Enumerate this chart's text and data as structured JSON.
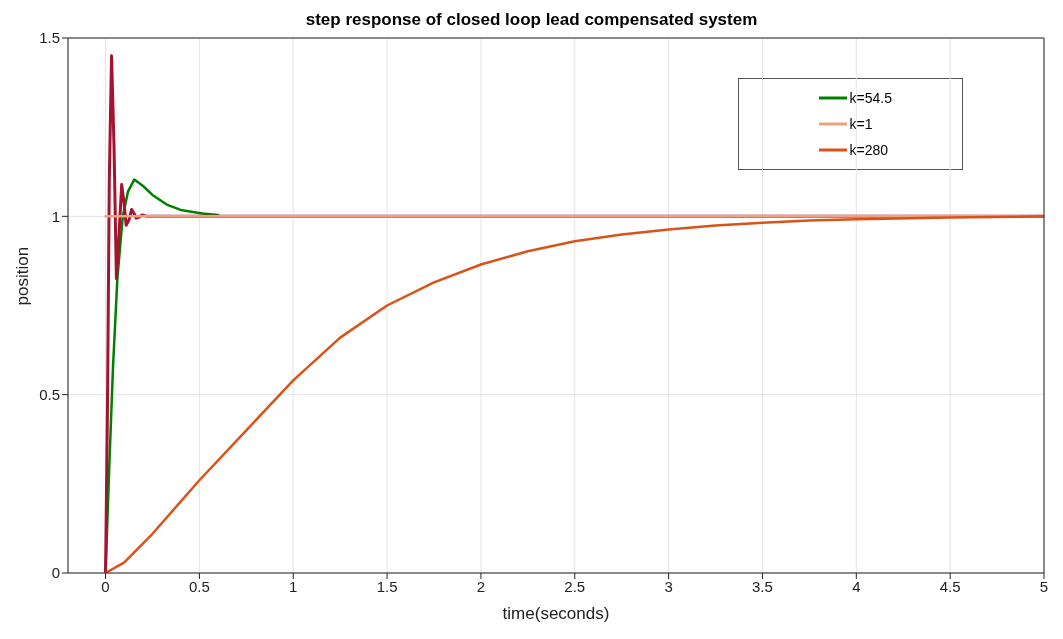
{
  "chart_data": {
    "type": "line",
    "title": "step response of closed loop lead compensated system",
    "xlabel": "time(seconds)",
    "ylabel": "position",
    "xlim": [
      -0.2,
      5
    ],
    "xticks": [
      0,
      0.5,
      1,
      1.5,
      2,
      2.5,
      3,
      3.5,
      4,
      4.5,
      5
    ],
    "ylim": [
      0,
      1.5
    ],
    "yticks": [
      0,
      0.5,
      1,
      1.5
    ],
    "grid": true,
    "legend": "top right",
    "marker": "none",
    "line_style": "solid",
    "series": [
      {
        "name": "k=54.5",
        "color": "#008000",
        "x": [
          0,
          0.02,
          0.04,
          0.063,
          0.08,
          0.092,
          0.12,
          0.153,
          0.2,
          0.25,
          0.326,
          0.4,
          0.515,
          0.6
        ],
        "values": [
          0,
          0.3,
          0.58,
          0.825,
          0.93,
          1.0,
          1.07,
          1.103,
          1.085,
          1.06,
          1.033,
          1.018,
          1.008,
          1.004
        ]
      },
      {
        "color": "#a2142f",
        "x": [
          0,
          0.01,
          0.02,
          0.032,
          0.045,
          0.058,
          0.072,
          0.086,
          0.098,
          0.11,
          0.125,
          0.139,
          0.152,
          0.163,
          0.18,
          0.195,
          0.22,
          0.3,
          1,
          2,
          3,
          4,
          5
        ],
        "values": [
          0,
          0.45,
          1.1,
          1.45,
          1.2,
          0.825,
          0.95,
          1.089,
          1.04,
          0.975,
          0.99,
          1.019,
          1.008,
          0.995,
          0.998,
          1.004,
          1.0,
          1.0,
          1.0,
          1.0,
          1.0,
          1.0,
          1.0
        ]
      },
      {
        "name": "k=1",
        "color": "#f0a07a",
        "x": [
          0,
          5
        ],
        "values": [
          1,
          1
        ]
      },
      {
        "name": "k=280",
        "color": "#d95319",
        "x": [
          0,
          0.1,
          0.25,
          0.5,
          0.75,
          1,
          1.25,
          1.5,
          1.75,
          2,
          2.25,
          2.5,
          2.75,
          3,
          3.25,
          3.5,
          3.75,
          4,
          4.5,
          5
        ],
        "values": [
          0,
          0.03,
          0.11,
          0.26,
          0.4,
          0.54,
          0.66,
          0.75,
          0.815,
          0.865,
          0.902,
          0.93,
          0.949,
          0.963,
          0.974,
          0.982,
          0.988,
          0.992,
          0.997,
          1.0
        ]
      }
    ]
  }
}
